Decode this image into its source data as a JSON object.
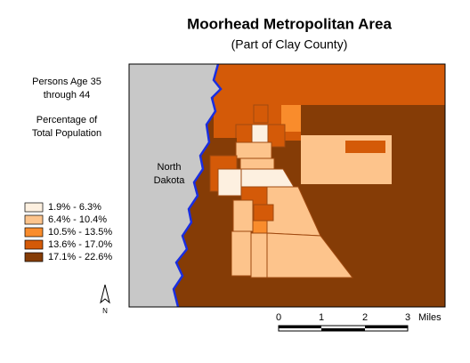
{
  "header": {
    "title": "Moorhead Metropolitan Area",
    "subtitle": "(Part of Clay County)"
  },
  "legend": {
    "title_lines": [
      "Persons Age 35",
      "through 44",
      "Percentage of",
      "Total Population"
    ],
    "items": [
      {
        "label": "1.9% - 6.3%",
        "color": "#fdf0e0"
      },
      {
        "label": "6.4% - 10.4%",
        "color": "#fdc48c"
      },
      {
        "label": "10.5% - 13.5%",
        "color": "#f98c2c"
      },
      {
        "label": "13.6% - 17.0%",
        "color": "#d45a08"
      },
      {
        "label": "17.1% - 22.6%",
        "color": "#853c06"
      }
    ]
  },
  "map": {
    "label_lines": [
      "North",
      "Dakota"
    ],
    "north": "N"
  },
  "scale": {
    "labels": [
      "0",
      "1",
      "2",
      "3"
    ],
    "unit": "Miles"
  }
}
